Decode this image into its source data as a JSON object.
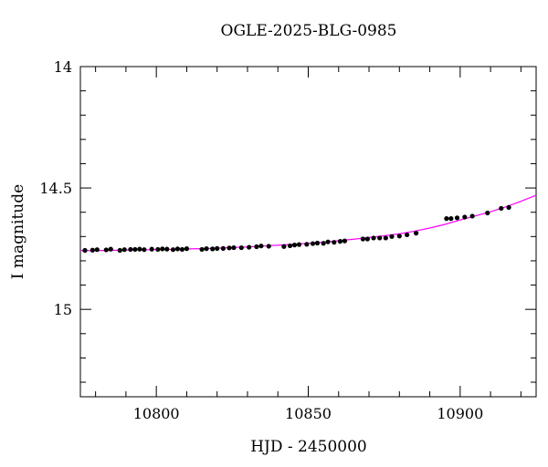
{
  "chart_data": {
    "type": "scatter",
    "title": "OGLE-2025-BLG-0985",
    "xlabel": "HJD - 2450000",
    "ylabel": "I magnitude",
    "xlim": [
      10775,
      10925
    ],
    "ylim": [
      15.36,
      14.0
    ],
    "y_inverted": true,
    "grid": false,
    "x_ticks": [
      10800,
      10850,
      10900
    ],
    "x_tick_labels": [
      "10800",
      "10850",
      "10900"
    ],
    "y_ticks": [
      14.0,
      14.5,
      15.0
    ],
    "y_tick_labels": [
      "14",
      "14.5",
      "15"
    ],
    "x_minor_step": 10,
    "y_minor_step": 0.1,
    "colors": {
      "points": "#000000",
      "model": "#ff00ff",
      "frame": "#000000"
    },
    "series": [
      {
        "kind": "points",
        "x": [
          10776.5,
          10779.0,
          10780.5,
          10783.5,
          10785.0,
          10788.0,
          10789.5,
          10791.5,
          10793.0,
          10794.5,
          10796.0,
          10798.5,
          10800.5,
          10802.0,
          10803.5,
          10805.5,
          10807.0,
          10808.5,
          10810.0,
          10815.0,
          10816.5,
          10818.5,
          10820.0,
          10822.0,
          10824.0,
          10825.5,
          10828.0,
          10830.5,
          10833.0,
          10834.5,
          10837.0,
          10842.0,
          10844.0,
          10845.5,
          10847.0,
          10849.5,
          10851.5,
          10853.0,
          10855.0,
          10856.5,
          10858.5,
          10860.5,
          10862.0,
          10868.0,
          10869.5,
          10871.5,
          10873.5,
          10875.5,
          10877.5,
          10880.0,
          10882.5,
          10885.5,
          10895.5,
          10897.0,
          10899.0,
          10901.5,
          10904.0,
          10909.0,
          10913.5,
          10916.0
        ],
        "y": [
          14.757,
          14.756,
          14.754,
          14.755,
          14.752,
          14.757,
          14.754,
          14.753,
          14.753,
          14.752,
          14.754,
          14.752,
          14.753,
          14.751,
          14.752,
          14.754,
          14.751,
          14.753,
          14.75,
          14.753,
          14.75,
          14.751,
          14.749,
          14.749,
          14.747,
          14.746,
          14.746,
          14.744,
          14.742,
          14.739,
          14.74,
          14.741,
          14.738,
          14.735,
          14.733,
          14.732,
          14.729,
          14.727,
          14.728,
          14.722,
          14.724,
          14.72,
          14.718,
          14.71,
          14.71,
          14.706,
          14.706,
          14.706,
          14.7,
          14.698,
          14.693,
          14.686,
          14.626,
          14.626,
          14.623,
          14.62,
          14.616,
          14.603,
          14.584,
          14.58
        ]
      },
      {
        "kind": "model",
        "x": [
          10775,
          10780,
          10785,
          10790,
          10795,
          10800,
          10805,
          10810,
          10815,
          10820,
          10825,
          10830,
          10835,
          10840,
          10845,
          10850,
          10855,
          10860,
          10865,
          10870,
          10875,
          10880,
          10885,
          10890,
          10895,
          10900,
          10905,
          10910,
          10915,
          10920,
          10925
        ],
        "y": [
          14.758,
          14.758,
          14.757,
          14.756,
          14.755,
          14.754,
          14.753,
          14.751,
          14.75,
          14.748,
          14.745,
          14.743,
          14.739,
          14.736,
          14.732,
          14.728,
          14.723,
          14.717,
          14.711,
          14.704,
          14.697,
          14.689,
          14.678,
          14.665,
          14.65,
          14.632,
          14.615,
          14.598,
          14.578,
          14.555,
          14.53
        ]
      }
    ]
  }
}
